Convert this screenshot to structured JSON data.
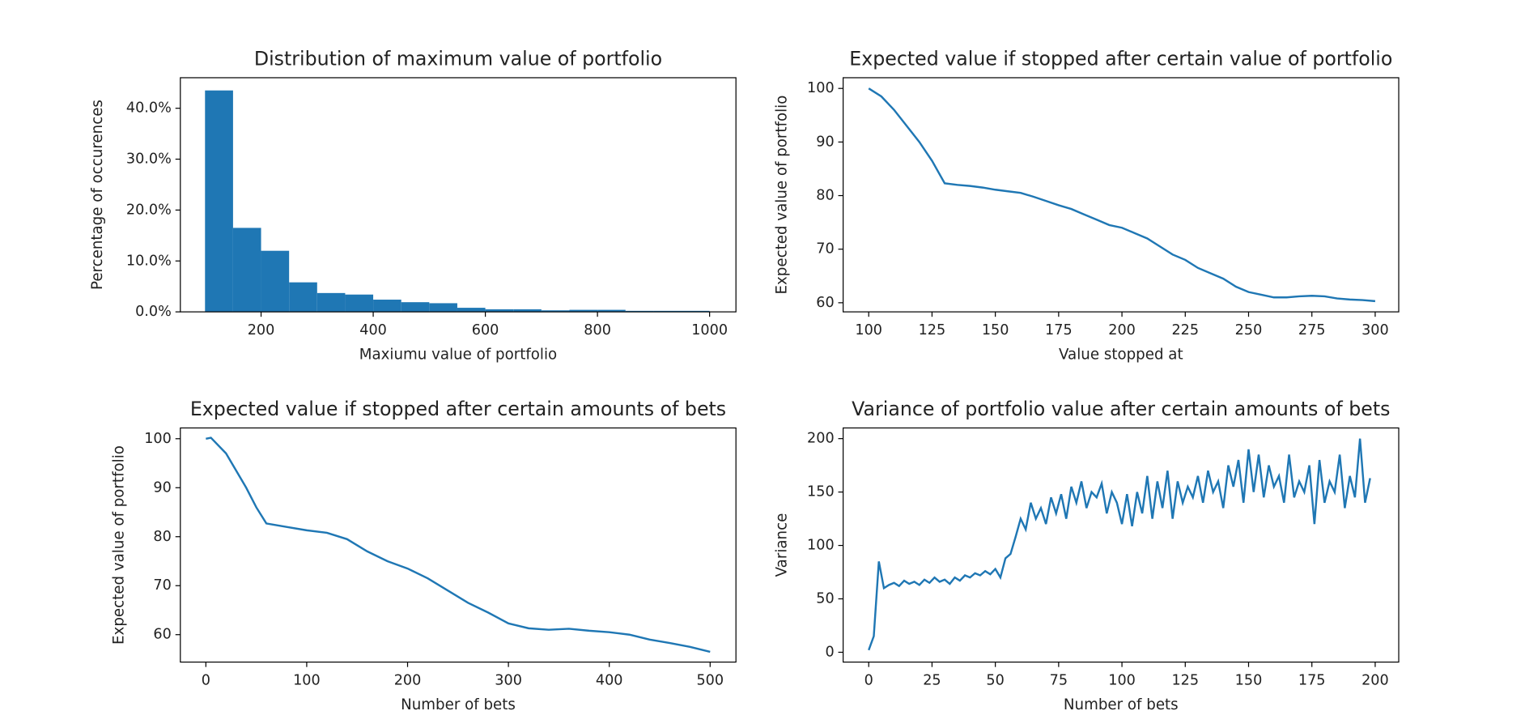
{
  "chart_data": [
    {
      "type": "histogram",
      "title": "Distribution of maximum value of portfolio",
      "xlabel": "Maxiumu value of portfolio",
      "ylabel": "Percentage of occurences",
      "color": "#1f77b4",
      "bins": [
        100,
        150,
        200,
        250,
        300,
        350,
        400,
        450,
        500,
        550,
        600,
        650,
        700,
        750,
        800,
        850,
        900,
        950,
        1000
      ],
      "values": [
        43.5,
        16.5,
        12,
        5.8,
        3.7,
        3.4,
        2.4,
        1.9,
        1.7,
        0.8,
        0.5,
        0.5,
        0.3,
        0.4,
        0.4,
        0.2,
        0.2,
        0.2
      ],
      "xlim": [
        56,
        1047
      ],
      "ylim": [
        0,
        46
      ],
      "xticks": [
        200,
        400,
        600,
        800,
        1000
      ],
      "yticks": [
        {
          "value": 0,
          "label": "0.0%"
        },
        {
          "value": 10,
          "label": "10.0%"
        },
        {
          "value": 20,
          "label": "20.0%"
        },
        {
          "value": 30,
          "label": "30.0%"
        },
        {
          "value": 40,
          "label": "40.0%"
        }
      ]
    },
    {
      "type": "line",
      "title": "Expected value if stopped after certain value of portfolio",
      "xlabel": "Value stopped at",
      "ylabel": "Expected value of portfolio",
      "color": "#1f77b4",
      "x": [
        100,
        105,
        110,
        115,
        120,
        125,
        130,
        135,
        140,
        145,
        150,
        155,
        160,
        165,
        170,
        175,
        180,
        185,
        190,
        195,
        200,
        205,
        210,
        215,
        220,
        225,
        230,
        235,
        240,
        245,
        250,
        255,
        260,
        265,
        270,
        275,
        280,
        285,
        290,
        295,
        300
      ],
      "values": [
        100,
        98.5,
        96,
        93,
        90,
        86.5,
        82.3,
        82,
        81.8,
        81.5,
        81.1,
        80.8,
        80.5,
        79.8,
        79,
        78.2,
        77.5,
        76.5,
        75.5,
        74.5,
        74,
        73,
        72,
        70.5,
        69,
        68,
        66.5,
        65.5,
        64.5,
        63,
        62,
        61.5,
        61,
        61,
        61.2,
        61.3,
        61.2,
        60.8,
        60.6,
        60.5,
        60.3
      ],
      "xlim": [
        89.9,
        309.3
      ],
      "ylim": [
        58.3,
        102
      ],
      "xticks": [
        100,
        125,
        150,
        175,
        200,
        225,
        250,
        275,
        300
      ],
      "yticks": [
        60,
        70,
        80,
        90,
        100
      ]
    },
    {
      "type": "line",
      "title": "Expected value if stopped after certain amounts of bets",
      "xlabel": "Number of bets",
      "ylabel": "Expected value of portfolio",
      "color": "#1f77b4",
      "x": [
        0,
        5,
        20,
        40,
        50,
        60,
        80,
        100,
        120,
        140,
        160,
        180,
        200,
        220,
        240,
        260,
        280,
        300,
        320,
        340,
        360,
        380,
        400,
        420,
        440,
        460,
        480,
        500
      ],
      "values": [
        100,
        100.2,
        97,
        90,
        86,
        82.7,
        82,
        81.3,
        80.8,
        79.5,
        77,
        75,
        73.5,
        71.5,
        69,
        66.5,
        64.5,
        62.3,
        61.3,
        61,
        61.2,
        60.8,
        60.5,
        60,
        59,
        58.3,
        57.5,
        56.5
      ],
      "xlim": [
        -25.3,
        525.6
      ],
      "ylim": [
        54.4,
        102.2
      ],
      "xticks": [
        0,
        100,
        200,
        300,
        400,
        500
      ],
      "yticks": [
        60,
        70,
        80,
        90,
        100
      ]
    },
    {
      "type": "line",
      "title": "Variance of portfolio value after certain amounts of bets",
      "xlabel": "Number of bets",
      "ylabel": "Variance",
      "color": "#1f77b4",
      "x": [
        0,
        2,
        4,
        6,
        8,
        10,
        12,
        14,
        16,
        18,
        20,
        22,
        24,
        26,
        28,
        30,
        32,
        34,
        36,
        38,
        40,
        42,
        44,
        46,
        48,
        50,
        52,
        54,
        56,
        58,
        60,
        62,
        64,
        66,
        68,
        70,
        72,
        74,
        76,
        78,
        80,
        82,
        84,
        86,
        88,
        90,
        92,
        94,
        96,
        98,
        100,
        102,
        104,
        106,
        108,
        110,
        112,
        114,
        116,
        118,
        120,
        122,
        124,
        126,
        128,
        130,
        132,
        134,
        136,
        138,
        140,
        142,
        144,
        146,
        148,
        150,
        152,
        154,
        156,
        158,
        160,
        162,
        164,
        166,
        168,
        170,
        172,
        174,
        176,
        178,
        180,
        182,
        184,
        186,
        188,
        190,
        192,
        194,
        196,
        198
      ],
      "values": [
        2,
        15,
        85,
        60,
        63,
        65,
        62,
        67,
        64,
        66,
        63,
        68,
        65,
        70,
        66,
        68,
        64,
        70,
        67,
        72,
        70,
        74,
        72,
        76,
        73,
        78,
        70,
        88,
        92,
        108,
        125,
        115,
        140,
        125,
        135,
        120,
        145,
        130,
        148,
        125,
        155,
        140,
        160,
        135,
        150,
        145,
        158,
        130,
        150,
        140,
        120,
        148,
        118,
        150,
        130,
        165,
        125,
        160,
        135,
        170,
        125,
        160,
        140,
        155,
        145,
        165,
        140,
        170,
        150,
        160,
        135,
        175,
        155,
        180,
        140,
        190,
        150,
        185,
        145,
        175,
        155,
        165,
        140,
        185,
        145,
        160,
        150,
        175,
        120,
        180,
        140,
        160,
        150,
        185,
        135,
        165,
        145,
        200,
        140,
        163
      ],
      "xlim": [
        -10.1,
        209.3
      ],
      "ylim": [
        -9.2,
        210
      ],
      "xticks": [
        0,
        25,
        50,
        75,
        100,
        125,
        150,
        175,
        200
      ],
      "yticks": [
        0,
        50,
        100,
        150,
        200
      ]
    }
  ]
}
